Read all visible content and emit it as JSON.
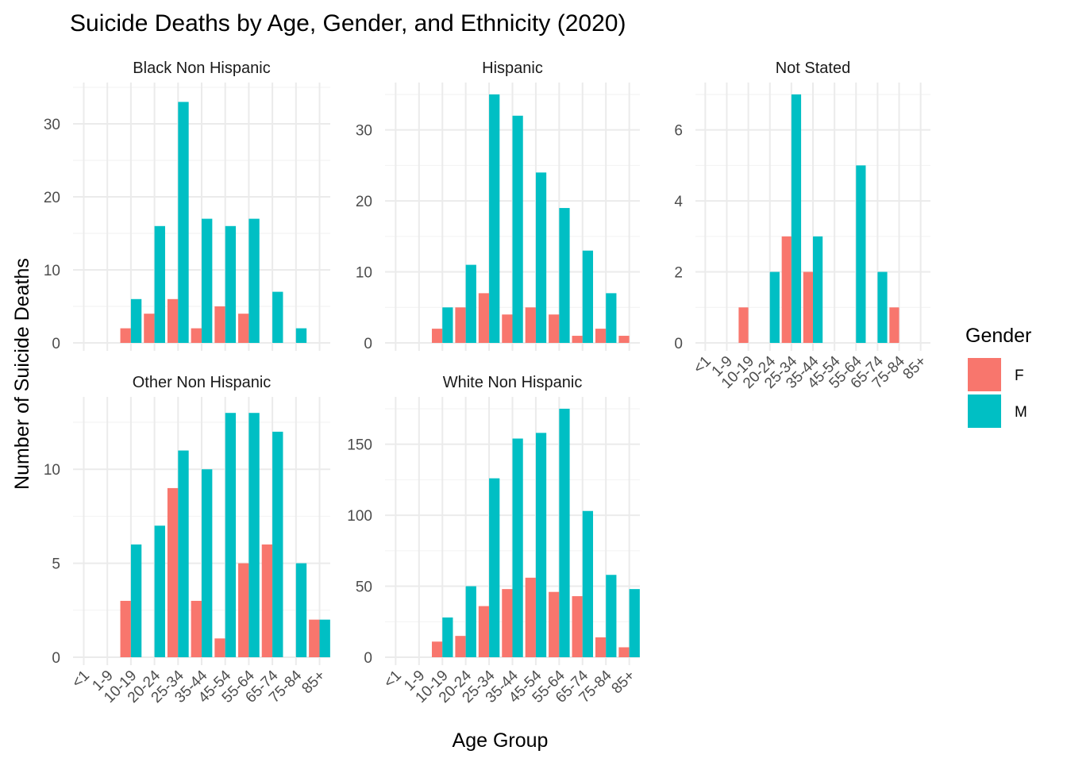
{
  "title": "Suicide Deaths by Age, Gender, and Ethnicity (2020)",
  "chart_data": {
    "type": "bar",
    "title": "Suicide Deaths by Age, Gender, and Ethnicity (2020)",
    "xlabel": "Age Group",
    "ylabel": "Number of Suicide Deaths",
    "categories": [
      "<1",
      "1-9",
      "10-19",
      "20-24",
      "25-34",
      "35-44",
      "45-54",
      "55-64",
      "65-74",
      "75-84",
      "85+"
    ],
    "legend": {
      "title": "Gender",
      "position": "right",
      "entries": [
        {
          "label": "F",
          "color": "#F8766D"
        },
        {
          "label": "M",
          "color": "#00BFC4"
        }
      ]
    },
    "grid": true,
    "facets": [
      {
        "name": "Black Non Hispanic",
        "ylim": [
          0,
          35
        ],
        "yticks": [
          0,
          10,
          20,
          30
        ],
        "series": [
          {
            "name": "F",
            "values": [
              0,
              0,
              2,
              4,
              6,
              2,
              5,
              4,
              0,
              0,
              0
            ]
          },
          {
            "name": "M",
            "values": [
              0,
              0,
              6,
              16,
              33,
              17,
              16,
              17,
              7,
              2,
              0
            ]
          }
        ]
      },
      {
        "name": "Hispanic",
        "ylim": [
          0,
          36
        ],
        "yticks": [
          0,
          10,
          20,
          30
        ],
        "series": [
          {
            "name": "F",
            "values": [
              0,
              0,
              2,
              5,
              7,
              4,
              5,
              4,
              1,
              2,
              1
            ]
          },
          {
            "name": "M",
            "values": [
              0,
              0,
              5,
              11,
              35,
              32,
              24,
              19,
              13,
              7,
              0
            ]
          }
        ]
      },
      {
        "name": "Not Stated",
        "ylim": [
          0,
          7.2
        ],
        "yticks": [
          0,
          2,
          4,
          6
        ],
        "series": [
          {
            "name": "F",
            "values": [
              0,
              0,
              1,
              0,
              3,
              2,
              0,
              0,
              0,
              1,
              0
            ]
          },
          {
            "name": "M",
            "values": [
              0,
              0,
              0,
              2,
              7,
              3,
              0,
              5,
              2,
              0,
              0
            ]
          }
        ]
      },
      {
        "name": "Other Non Hispanic",
        "ylim": [
          0,
          13.6
        ],
        "yticks": [
          0,
          5,
          10
        ],
        "series": [
          {
            "name": "F",
            "values": [
              0,
              0,
              3,
              0,
              9,
              3,
              1,
              5,
              6,
              0,
              2
            ]
          },
          {
            "name": "M",
            "values": [
              0,
              0,
              6,
              7,
              11,
              10,
              13,
              13,
              12,
              5,
              2
            ]
          }
        ]
      },
      {
        "name": "White Non Hispanic",
        "ylim": [
          0,
          180
        ],
        "yticks": [
          0,
          50,
          100,
          150
        ],
        "series": [
          {
            "name": "F",
            "values": [
              0,
              0,
              11,
              15,
              36,
              48,
              56,
              46,
              43,
              14,
              7
            ]
          },
          {
            "name": "M",
            "values": [
              0,
              0,
              28,
              50,
              126,
              154,
              158,
              175,
              103,
              58,
              48
            ]
          }
        ]
      }
    ]
  }
}
